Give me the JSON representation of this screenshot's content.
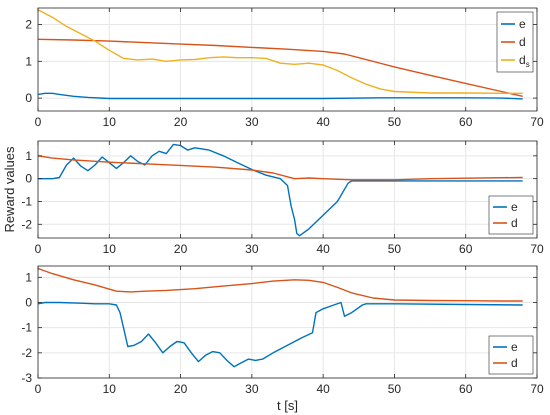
{
  "chart_data": [
    {
      "type": "line",
      "title": "",
      "xlabel": "",
      "ylabel": "",
      "xlim": [
        0,
        70
      ],
      "ylim": [
        -0.35,
        2.45
      ],
      "xticks": [
        0,
        10,
        20,
        30,
        40,
        50,
        60,
        70
      ],
      "yticks": [
        0,
        1,
        2
      ],
      "grid": true,
      "legend_position": "top-right",
      "series": [
        {
          "name": "e",
          "color": "#0072BD",
          "points": [
            [
              0,
              0.1
            ],
            [
              1,
              0.13
            ],
            [
              2,
              0.13
            ],
            [
              3,
              0.1
            ],
            [
              5,
              0.05
            ],
            [
              7,
              0.02
            ],
            [
              10,
              -0.01
            ],
            [
              15,
              -0.01
            ],
            [
              20,
              -0.01
            ],
            [
              30,
              -0.01
            ],
            [
              40,
              -0.01
            ],
            [
              48,
              0.01
            ],
            [
              55,
              0.01
            ],
            [
              60,
              0.01
            ],
            [
              65,
              0.0
            ],
            [
              68,
              -0.02
            ]
          ]
        },
        {
          "name": "d",
          "color": "#D95319",
          "points": [
            [
              0,
              1.6
            ],
            [
              5,
              1.58
            ],
            [
              10,
              1.55
            ],
            [
              15,
              1.51
            ],
            [
              20,
              1.47
            ],
            [
              25,
              1.43
            ],
            [
              30,
              1.38
            ],
            [
              35,
              1.33
            ],
            [
              40,
              1.27
            ],
            [
              43,
              1.2
            ],
            [
              45,
              1.1
            ],
            [
              50,
              0.85
            ],
            [
              55,
              0.62
            ],
            [
              60,
              0.4
            ],
            [
              65,
              0.18
            ],
            [
              68,
              0.05
            ]
          ]
        },
        {
          "name": "d_s",
          "color": "#EDB120",
          "points": [
            [
              0,
              2.4
            ],
            [
              2,
              2.2
            ],
            [
              4,
              1.95
            ],
            [
              6,
              1.75
            ],
            [
              8,
              1.55
            ],
            [
              10,
              1.3
            ],
            [
              12,
              1.08
            ],
            [
              14,
              1.04
            ],
            [
              16,
              1.06
            ],
            [
              18,
              1.0
            ],
            [
              20,
              1.04
            ],
            [
              22,
              1.05
            ],
            [
              24,
              1.1
            ],
            [
              26,
              1.12
            ],
            [
              28,
              1.1
            ],
            [
              30,
              1.1
            ],
            [
              32,
              1.08
            ],
            [
              34,
              0.95
            ],
            [
              36,
              0.92
            ],
            [
              38,
              0.95
            ],
            [
              40,
              0.9
            ],
            [
              42,
              0.75
            ],
            [
              44,
              0.55
            ],
            [
              46,
              0.38
            ],
            [
              48,
              0.25
            ],
            [
              50,
              0.18
            ],
            [
              55,
              0.14
            ],
            [
              60,
              0.14
            ],
            [
              65,
              0.13
            ],
            [
              68,
              0.13
            ]
          ]
        }
      ]
    },
    {
      "type": "line",
      "title": "",
      "xlabel": "",
      "ylabel": "Reward values",
      "xlim": [
        0,
        70
      ],
      "ylim": [
        -2.6,
        1.65
      ],
      "xticks": [
        0,
        10,
        20,
        30,
        40,
        50,
        60,
        70
      ],
      "yticks": [
        -2,
        -1,
        0,
        1
      ],
      "grid": true,
      "legend_position": "bottom-right",
      "series": [
        {
          "name": "e",
          "color": "#0072BD",
          "points": [
            [
              0,
              0.0
            ],
            [
              2,
              0.0
            ],
            [
              3,
              0.05
            ],
            [
              4,
              0.6
            ],
            [
              5,
              0.9
            ],
            [
              6,
              0.55
            ],
            [
              7,
              0.35
            ],
            [
              8,
              0.6
            ],
            [
              9,
              0.95
            ],
            [
              10,
              0.7
            ],
            [
              11,
              0.45
            ],
            [
              12,
              0.7
            ],
            [
              13,
              1.0
            ],
            [
              14,
              0.75
            ],
            [
              15,
              0.6
            ],
            [
              16,
              1.0
            ],
            [
              17,
              1.2
            ],
            [
              18,
              1.1
            ],
            [
              19,
              1.5
            ],
            [
              20,
              1.45
            ],
            [
              21,
              1.25
            ],
            [
              22,
              1.35
            ],
            [
              24,
              1.25
            ],
            [
              26,
              1.0
            ],
            [
              28,
              0.7
            ],
            [
              30,
              0.4
            ],
            [
              32,
              0.15
            ],
            [
              34,
              0.0
            ],
            [
              35,
              -0.3
            ],
            [
              35.5,
              -1.2
            ],
            [
              36,
              -1.8
            ],
            [
              36.3,
              -2.4
            ],
            [
              36.7,
              -2.5
            ],
            [
              38,
              -2.2
            ],
            [
              40,
              -1.6
            ],
            [
              42,
              -1.0
            ],
            [
              43.5,
              -0.2
            ],
            [
              44,
              -0.1
            ],
            [
              50,
              -0.1
            ],
            [
              60,
              -0.1
            ],
            [
              68,
              -0.1
            ]
          ]
        },
        {
          "name": "d",
          "color": "#D95319",
          "points": [
            [
              0,
              1.0
            ],
            [
              2,
              0.9
            ],
            [
              5,
              0.82
            ],
            [
              10,
              0.72
            ],
            [
              15,
              0.65
            ],
            [
              20,
              0.58
            ],
            [
              25,
              0.5
            ],
            [
              30,
              0.38
            ],
            [
              33,
              0.25
            ],
            [
              36,
              0.0
            ],
            [
              38,
              0.03
            ],
            [
              40,
              0.0
            ],
            [
              44,
              -0.05
            ],
            [
              50,
              -0.05
            ],
            [
              55,
              0.0
            ],
            [
              60,
              0.02
            ],
            [
              65,
              0.04
            ],
            [
              68,
              0.05
            ]
          ]
        }
      ]
    },
    {
      "type": "line",
      "title": "",
      "xlabel": "t [s]",
      "ylabel": "",
      "xlim": [
        0,
        70
      ],
      "ylim": [
        -3.0,
        1.45
      ],
      "xticks": [
        0,
        10,
        20,
        30,
        40,
        50,
        60,
        70
      ],
      "yticks": [
        -3,
        -2,
        -1,
        0,
        1
      ],
      "grid": true,
      "legend_position": "bottom-right",
      "series": [
        {
          "name": "e",
          "color": "#0072BD",
          "points": [
            [
              0,
              -0.05
            ],
            [
              1,
              0.0
            ],
            [
              3,
              0.0
            ],
            [
              6,
              -0.03
            ],
            [
              8,
              -0.05
            ],
            [
              10,
              -0.05
            ],
            [
              11,
              -0.1
            ],
            [
              11.5,
              -0.4
            ],
            [
              12,
              -1.0
            ],
            [
              12.6,
              -1.75
            ],
            [
              13.5,
              -1.7
            ],
            [
              14.5,
              -1.55
            ],
            [
              15.5,
              -1.25
            ],
            [
              16.5,
              -1.6
            ],
            [
              17.5,
              -2.0
            ],
            [
              18.5,
              -1.75
            ],
            [
              19.5,
              -1.55
            ],
            [
              20.5,
              -1.6
            ],
            [
              21.5,
              -2.0
            ],
            [
              22.5,
              -2.35
            ],
            [
              23.5,
              -2.1
            ],
            [
              24.5,
              -1.95
            ],
            [
              25.5,
              -2.0
            ],
            [
              26.5,
              -2.3
            ],
            [
              27.5,
              -2.55
            ],
            [
              28.5,
              -2.4
            ],
            [
              29.5,
              -2.25
            ],
            [
              30.5,
              -2.3
            ],
            [
              31.5,
              -2.25
            ],
            [
              33,
              -2.0
            ],
            [
              35,
              -1.7
            ],
            [
              37,
              -1.4
            ],
            [
              38.5,
              -1.2
            ],
            [
              39,
              -0.4
            ],
            [
              40,
              -0.25
            ],
            [
              41.5,
              -0.1
            ],
            [
              42.5,
              0.0
            ],
            [
              43,
              -0.55
            ],
            [
              44,
              -0.4
            ],
            [
              45.5,
              -0.1
            ],
            [
              46,
              -0.05
            ],
            [
              50,
              -0.05
            ],
            [
              60,
              -0.08
            ],
            [
              68,
              -0.1
            ]
          ]
        },
        {
          "name": "d",
          "color": "#D95319",
          "points": [
            [
              0,
              1.35
            ],
            [
              2,
              1.15
            ],
            [
              5,
              0.9
            ],
            [
              8,
              0.7
            ],
            [
              11,
              0.45
            ],
            [
              13,
              0.42
            ],
            [
              15,
              0.45
            ],
            [
              18,
              0.48
            ],
            [
              22,
              0.55
            ],
            [
              26,
              0.65
            ],
            [
              30,
              0.75
            ],
            [
              33,
              0.85
            ],
            [
              36,
              0.9
            ],
            [
              38,
              0.88
            ],
            [
              40,
              0.8
            ],
            [
              42,
              0.6
            ],
            [
              44,
              0.38
            ],
            [
              47,
              0.18
            ],
            [
              50,
              0.1
            ],
            [
              55,
              0.08
            ],
            [
              60,
              0.07
            ],
            [
              65,
              0.06
            ],
            [
              68,
              0.06
            ]
          ]
        }
      ]
    }
  ]
}
